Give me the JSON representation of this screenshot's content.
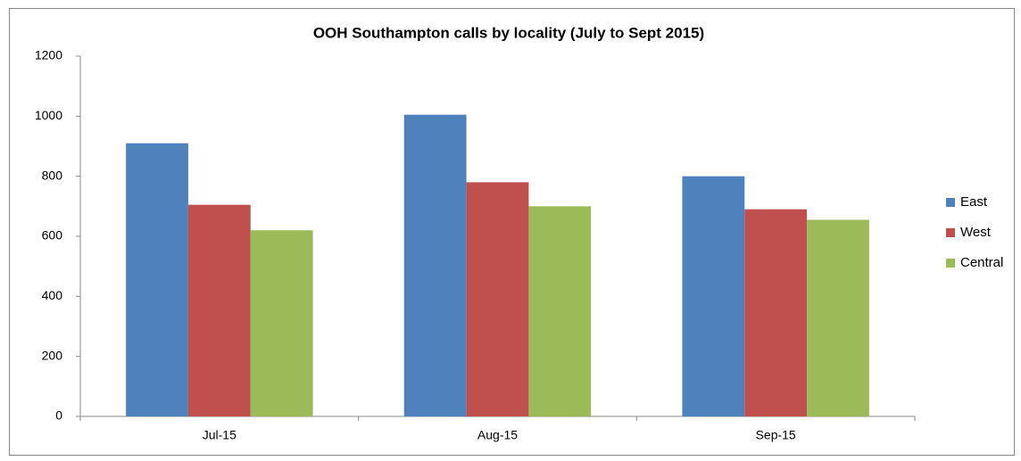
{
  "chart_data": {
    "type": "bar",
    "title": "OOH Southampton calls by locality (July to Sept 2015)",
    "categories": [
      "Jul-15",
      "Aug-15",
      "Sep-15"
    ],
    "series": [
      {
        "name": "East",
        "color": "#4f81bd",
        "values": [
          910,
          1005,
          800
        ]
      },
      {
        "name": "West",
        "color": "#c0504d",
        "values": [
          705,
          780,
          690
        ]
      },
      {
        "name": "Central",
        "color": "#9bbb59",
        "values": [
          620,
          700,
          655
        ]
      }
    ],
    "ylim": [
      0,
      1200
    ],
    "yticks": [
      0,
      200,
      400,
      600,
      800,
      1000,
      1200
    ],
    "grid": false,
    "legend": "right"
  }
}
